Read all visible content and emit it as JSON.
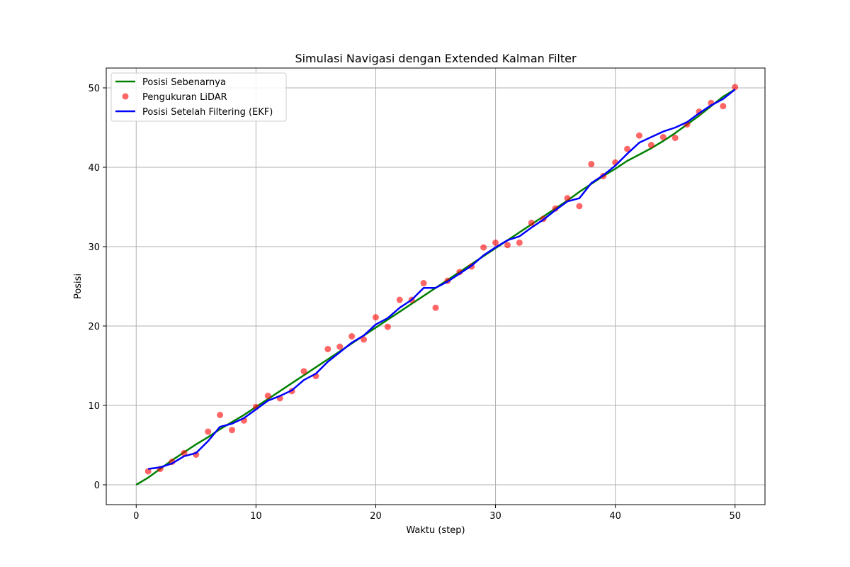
{
  "chart_data": {
    "type": "line",
    "title": "Simulasi Navigasi dengan Extended Kalman Filter",
    "xlabel": "Waktu (step)",
    "ylabel": "Posisi",
    "xlim": [
      -2.5,
      52.5
    ],
    "ylim": [
      -2.5,
      52.5
    ],
    "xticks": [
      0,
      10,
      20,
      30,
      40,
      50
    ],
    "yticks": [
      0,
      10,
      20,
      30,
      40,
      50
    ],
    "grid": true,
    "legend_position": "top-left",
    "series": [
      {
        "name": "Posisi Sebenarnya",
        "kind": "line",
        "color": "#008000",
        "x": [
          0,
          1,
          2,
          3,
          4,
          5,
          6,
          7,
          8,
          9,
          10,
          11,
          12,
          13,
          14,
          15,
          16,
          17,
          18,
          19,
          20,
          21,
          22,
          23,
          24,
          25,
          26,
          27,
          28,
          29,
          30,
          31,
          32,
          33,
          34,
          35,
          36,
          37,
          38,
          39,
          40,
          41,
          42,
          43,
          44,
          45,
          46,
          47,
          48,
          49,
          50
        ],
        "y": [
          0,
          0.9,
          2.0,
          3.1,
          4.1,
          5.1,
          6.0,
          7.0,
          7.9,
          8.8,
          9.8,
          10.8,
          11.8,
          12.8,
          13.8,
          14.8,
          15.8,
          16.8,
          17.8,
          18.8,
          19.8,
          20.8,
          21.8,
          22.8,
          23.8,
          24.8,
          25.8,
          26.8,
          27.8,
          28.8,
          29.8,
          30.8,
          31.8,
          32.8,
          33.8,
          34.8,
          35.8,
          36.9,
          37.9,
          38.9,
          39.8,
          40.8,
          41.6,
          42.4,
          43.3,
          44.3,
          45.4,
          46.5,
          47.7,
          48.9,
          49.8
        ]
      },
      {
        "name": "Pengukuran LiDAR",
        "kind": "scatter",
        "color": "#ff0000",
        "x": [
          1,
          2,
          3,
          4,
          5,
          6,
          7,
          8,
          9,
          10,
          11,
          12,
          13,
          14,
          15,
          16,
          17,
          18,
          19,
          20,
          21,
          22,
          23,
          24,
          25,
          26,
          27,
          28,
          29,
          30,
          31,
          32,
          33,
          34,
          35,
          36,
          37,
          38,
          39,
          40,
          41,
          42,
          43,
          44,
          45,
          46,
          47,
          48,
          49,
          50
        ],
        "y": [
          1.7,
          2.0,
          2.9,
          4.0,
          3.8,
          6.7,
          8.8,
          6.9,
          8.1,
          9.8,
          11.2,
          10.9,
          11.8,
          14.3,
          13.7,
          17.1,
          17.4,
          18.7,
          18.3,
          21.1,
          19.9,
          23.3,
          23.3,
          25.4,
          22.3,
          25.7,
          26.8,
          27.5,
          29.9,
          30.5,
          30.2,
          30.5,
          33.0,
          33.5,
          34.8,
          36.1,
          35.1,
          40.4,
          38.9,
          40.6,
          42.3,
          44.0,
          42.8,
          43.8,
          43.7,
          45.4,
          47.0,
          48.1,
          47.7,
          50.1
        ]
      },
      {
        "name": "Posisi Setelah Filtering (EKF)",
        "kind": "line",
        "color": "#0000ff",
        "x": [
          1,
          2,
          3,
          4,
          5,
          6,
          7,
          8,
          9,
          10,
          11,
          12,
          13,
          14,
          15,
          16,
          17,
          18,
          19,
          20,
          21,
          22,
          23,
          24,
          25,
          26,
          27,
          28,
          29,
          30,
          31,
          32,
          33,
          34,
          35,
          36,
          37,
          38,
          39,
          40,
          41,
          42,
          43,
          44,
          45,
          46,
          47,
          48,
          49,
          50
        ],
        "y": [
          2.0,
          2.2,
          2.7,
          3.6,
          4.0,
          5.5,
          7.3,
          7.7,
          8.4,
          9.5,
          10.6,
          11.2,
          11.9,
          13.2,
          14.0,
          15.5,
          16.7,
          17.9,
          18.8,
          20.2,
          21.0,
          22.3,
          23.3,
          24.8,
          24.8,
          25.6,
          26.6,
          27.6,
          28.9,
          29.9,
          30.8,
          31.3,
          32.4,
          33.4,
          34.6,
          35.7,
          36.1,
          38.0,
          39.0,
          40.2,
          41.7,
          43.1,
          43.8,
          44.5,
          45.0,
          45.7,
          46.8,
          47.8,
          48.6,
          49.8
        ]
      }
    ]
  }
}
